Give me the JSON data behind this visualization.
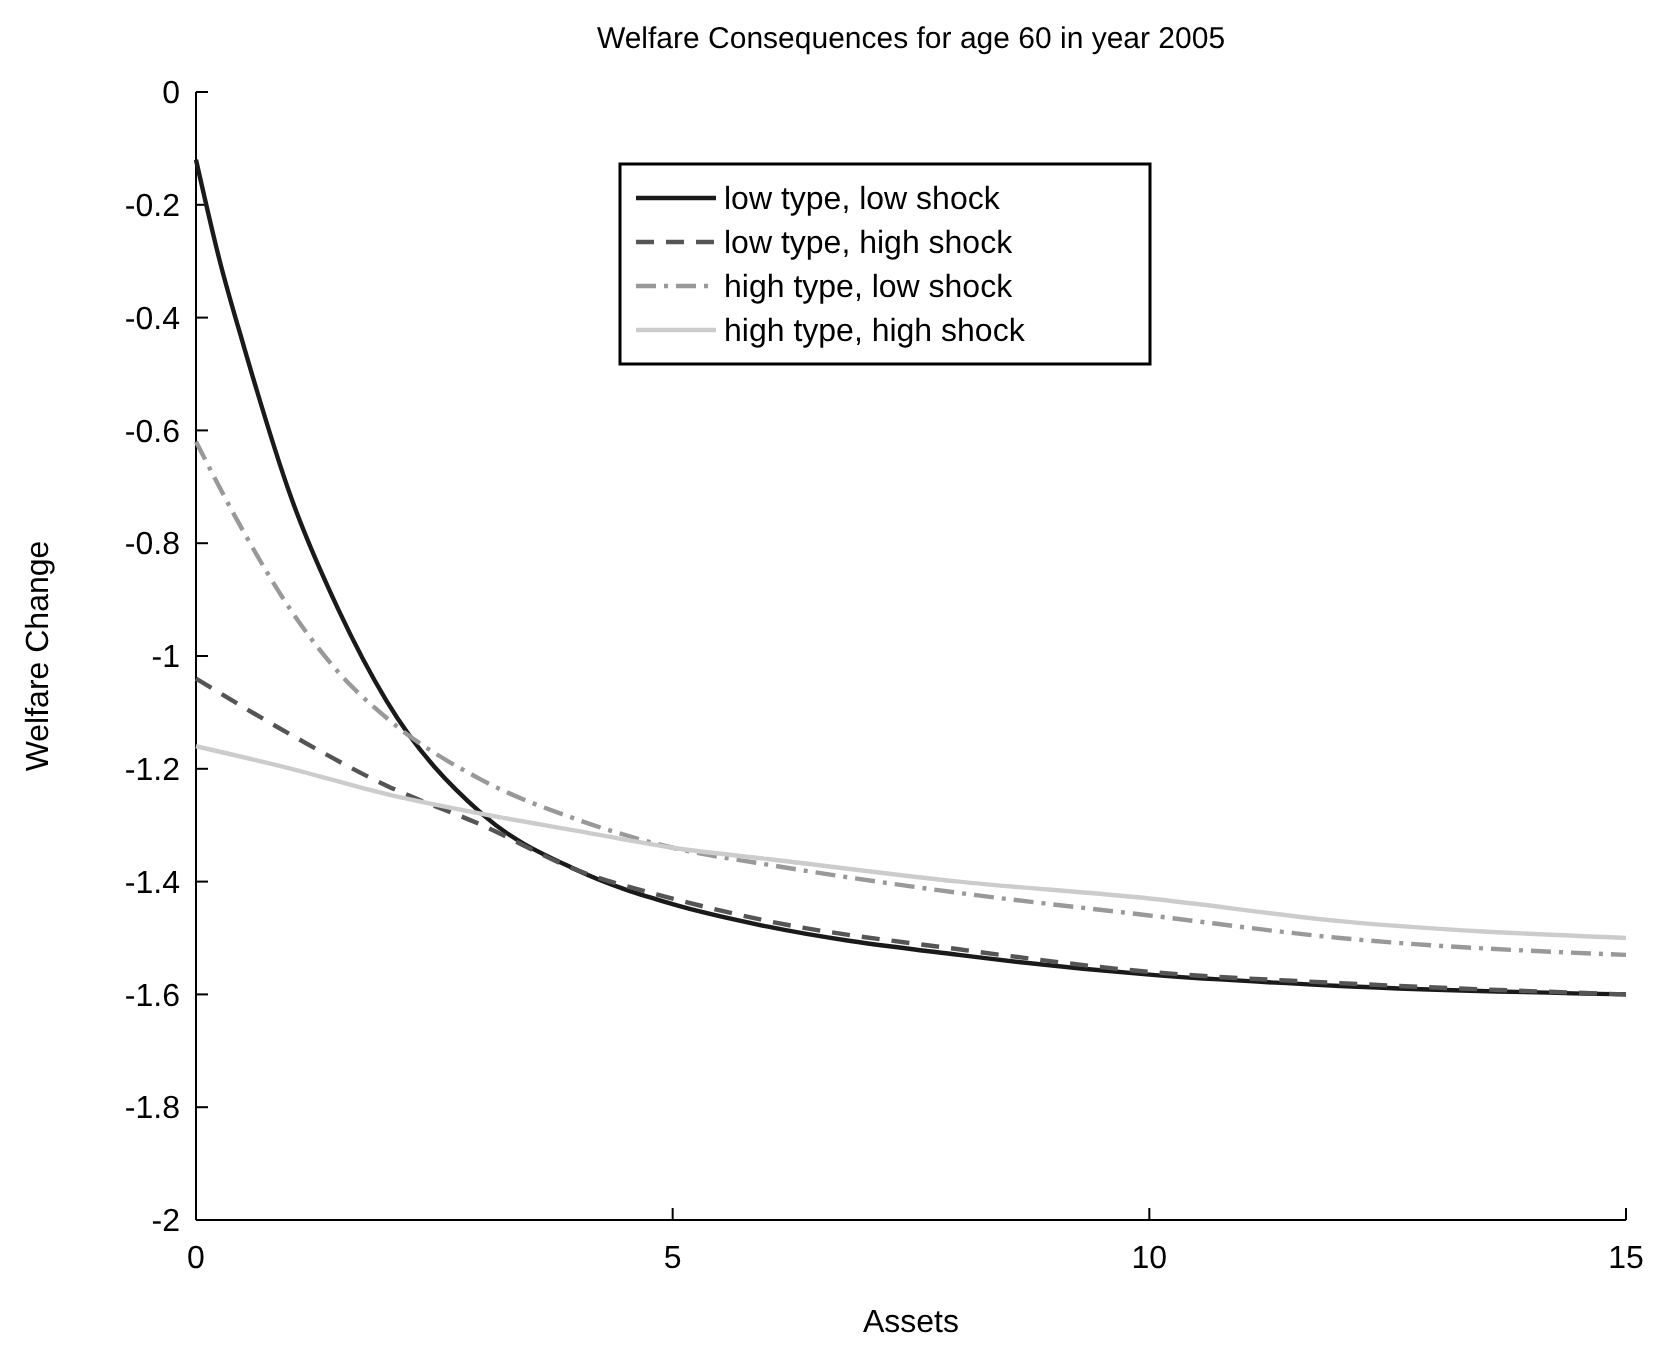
{
  "chart_data": {
    "type": "line",
    "title": "Welfare Consequences for age 60 in year 2005",
    "xlabel": "Assets",
    "ylabel": "Welfare Change",
    "xlim": [
      0,
      15
    ],
    "xticks": [
      0,
      5,
      10,
      15
    ],
    "ylim": [
      -2,
      0
    ],
    "yticks": [
      -2,
      -1.8,
      -1.6,
      -1.4,
      -1.2,
      -1,
      -0.8,
      -0.6,
      -0.4,
      -0.2,
      0
    ],
    "grid": false,
    "legend": "top",
    "marker": "none",
    "series": [
      {
        "name": "low type, low shock",
        "color": "#1a1a1a",
        "line_style": "solid",
        "x": [
          0,
          0.25,
          0.5,
          1,
          1.5,
          2,
          3,
          4,
          5,
          6,
          8,
          10,
          12,
          15
        ],
        "values": [
          -0.12,
          -0.3,
          -0.45,
          -0.72,
          -0.92,
          -1.08,
          -1.28,
          -1.38,
          -1.44,
          -1.48,
          -1.53,
          -1.565,
          -1.585,
          -1.6
        ]
      },
      {
        "name": "low type, high shock",
        "color": "#555555",
        "line_style": "dashed",
        "x": [
          0,
          1,
          2,
          3,
          4,
          5,
          6,
          8,
          10,
          12,
          15
        ],
        "values": [
          -1.04,
          -1.14,
          -1.23,
          -1.3,
          -1.38,
          -1.43,
          -1.47,
          -1.52,
          -1.56,
          -1.58,
          -1.6
        ]
      },
      {
        "name": "high type, low shock",
        "color": "#999999",
        "line_style": "dashdot",
        "x": [
          0,
          0.5,
          1,
          1.5,
          2,
          3,
          4,
          5,
          6,
          8,
          10,
          12,
          15
        ],
        "values": [
          -0.62,
          -0.78,
          -0.92,
          -1.03,
          -1.11,
          -1.22,
          -1.29,
          -1.34,
          -1.37,
          -1.42,
          -1.46,
          -1.5,
          -1.53
        ]
      },
      {
        "name": "high type, high shock",
        "color": "#cccccc",
        "line_style": "solid",
        "x": [
          0,
          1,
          2,
          3,
          4,
          5,
          6,
          8,
          10,
          12,
          15
        ],
        "values": [
          -1.16,
          -1.2,
          -1.245,
          -1.28,
          -1.31,
          -1.34,
          -1.36,
          -1.4,
          -1.43,
          -1.47,
          -1.5
        ]
      }
    ]
  }
}
